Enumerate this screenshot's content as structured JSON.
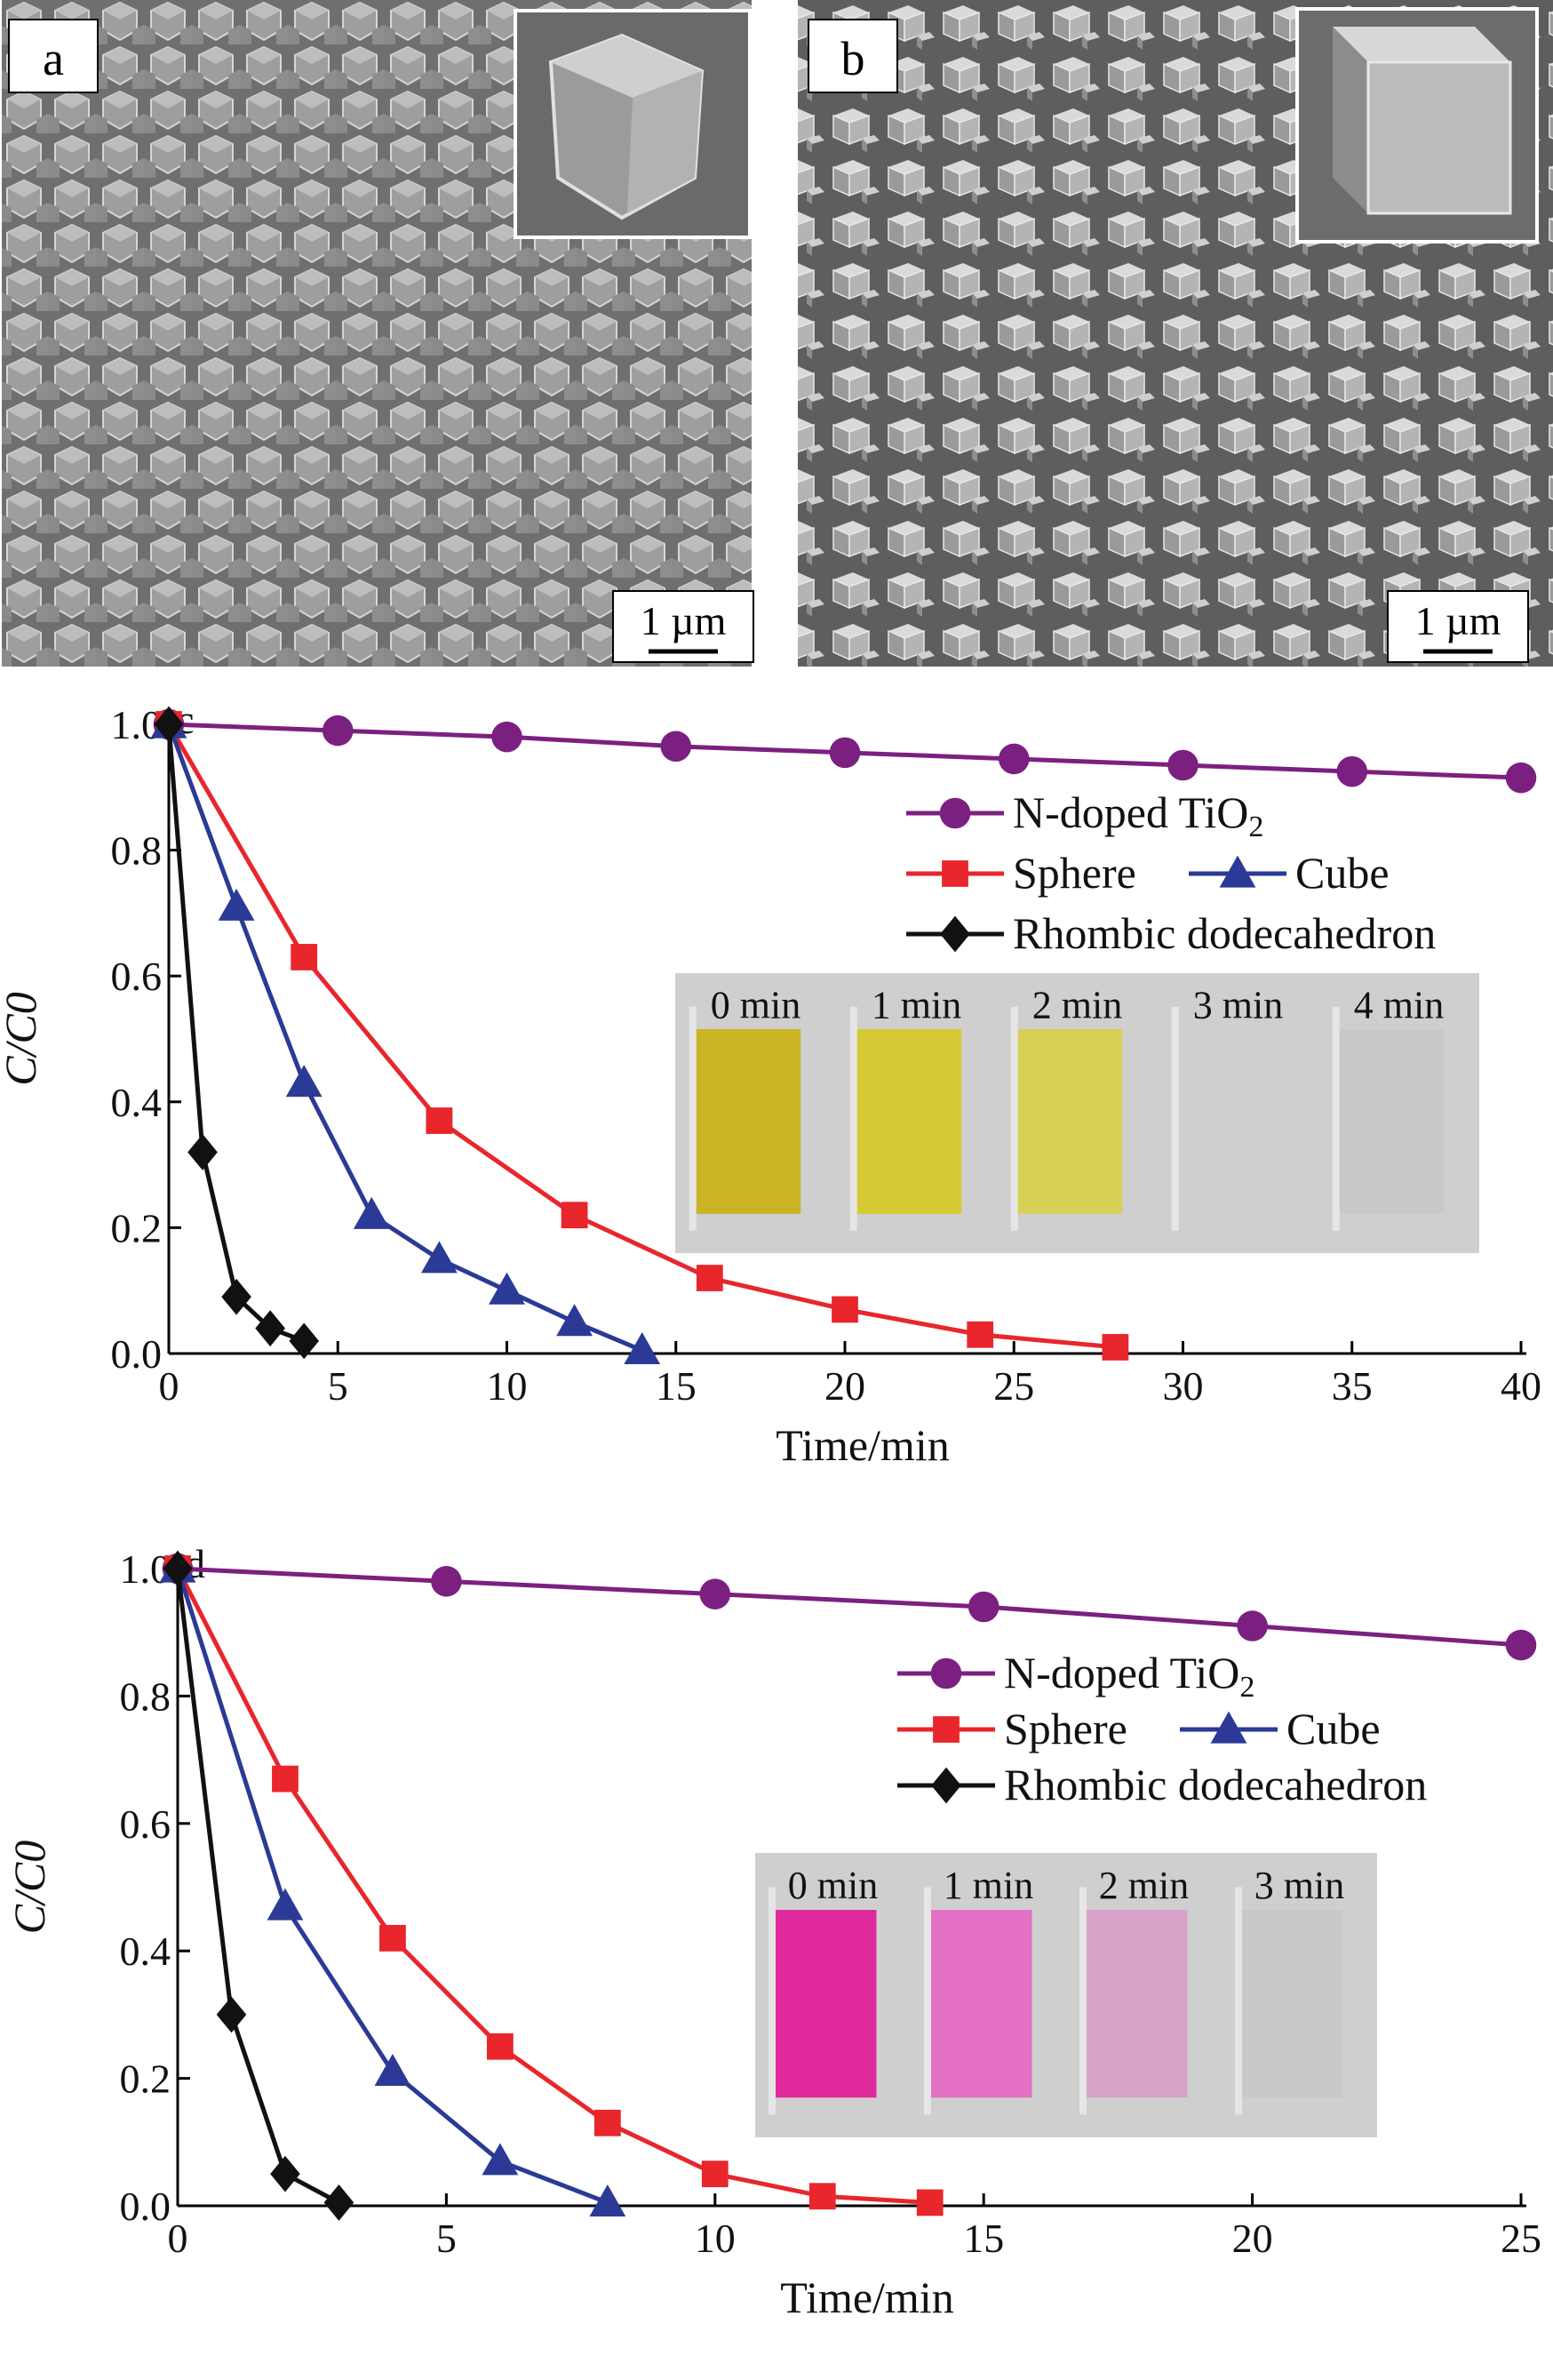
{
  "panels": {
    "a": {
      "label": "a",
      "scale_bar": "1 µm"
    },
    "b": {
      "label": "b",
      "scale_bar": "1 µm"
    }
  },
  "chart_data": [
    {
      "panel_label": "c",
      "type": "line",
      "xlabel": "Time/min",
      "ylabel": "C/C0",
      "xlim": [
        0,
        40
      ],
      "ylim": [
        0,
        1.0
      ],
      "x_ticks": [
        "0",
        "5",
        "10",
        "15",
        "20",
        "25",
        "30",
        "35",
        "40"
      ],
      "y_ticks": [
        "0.0",
        "0.2",
        "0.4",
        "0.6",
        "0.8",
        "1.0"
      ],
      "legend": [
        {
          "name": "N-doped TiO2",
          "marker": "circle",
          "color": "#7b2080"
        },
        {
          "name": "Sphere",
          "marker": "square",
          "color": "#e8262c"
        },
        {
          "name": "Cube",
          "marker": "triangle",
          "color": "#2b3a96"
        },
        {
          "name": "Rhombic dodecahedron",
          "marker": "diamond",
          "color": "#111111"
        }
      ],
      "series": [
        {
          "name": "N-doped TiO2",
          "marker": "circle",
          "color": "#7b2080",
          "x": [
            0,
            5,
            10,
            15,
            20,
            25,
            30,
            35,
            40
          ],
          "y": [
            1.0,
            0.99,
            0.98,
            0.965,
            0.955,
            0.945,
            0.935,
            0.925,
            0.915
          ]
        },
        {
          "name": "Sphere",
          "marker": "square",
          "color": "#e8262c",
          "x": [
            0,
            4,
            8,
            12,
            16,
            20,
            24,
            28
          ],
          "y": [
            1.0,
            0.63,
            0.37,
            0.22,
            0.12,
            0.07,
            0.03,
            0.01
          ]
        },
        {
          "name": "Cube",
          "marker": "triangle",
          "color": "#2b3a96",
          "x": [
            0,
            2,
            4,
            6,
            8,
            10,
            12,
            14
          ],
          "y": [
            1.0,
            0.71,
            0.43,
            0.22,
            0.15,
            0.1,
            0.05,
            0.005
          ]
        },
        {
          "name": "Rhombic dodecahedron",
          "marker": "diamond",
          "color": "#111111",
          "x": [
            0,
            1,
            2,
            3,
            4
          ],
          "y": [
            1.0,
            0.32,
            0.09,
            0.04,
            0.02
          ]
        }
      ],
      "inset_photo": {
        "labels": [
          "0 min",
          "1 min",
          "2 min",
          "3 min",
          "4 min"
        ],
        "colors": [
          "#c8b21a",
          "#d6c82a",
          "#d8d050",
          "#cfcfcf",
          "#c8c8c8"
        ]
      }
    },
    {
      "panel_label": "d",
      "type": "line",
      "xlabel": "Time/min",
      "ylabel": "C/C0",
      "xlim": [
        0,
        25
      ],
      "ylim": [
        0,
        1.0
      ],
      "x_ticks": [
        "0",
        "5",
        "10",
        "15",
        "20",
        "25"
      ],
      "y_ticks": [
        "0.0",
        "0.2",
        "0.4",
        "0.6",
        "0.8",
        "1.0"
      ],
      "legend": [
        {
          "name": "N-doped TiO2",
          "marker": "circle",
          "color": "#7b2080"
        },
        {
          "name": "Sphere",
          "marker": "square",
          "color": "#e8262c"
        },
        {
          "name": "Cube",
          "marker": "triangle",
          "color": "#2b3a96"
        },
        {
          "name": "Rhombic dodecahedron",
          "marker": "diamond",
          "color": "#111111"
        }
      ],
      "series": [
        {
          "name": "N-doped TiO2",
          "marker": "circle",
          "color": "#7b2080",
          "x": [
            0,
            5,
            10,
            15,
            20,
            25
          ],
          "y": [
            1.0,
            0.98,
            0.96,
            0.94,
            0.91,
            0.88
          ]
        },
        {
          "name": "Sphere",
          "marker": "square",
          "color": "#e8262c",
          "x": [
            0,
            2,
            4,
            6,
            8,
            10,
            12,
            14
          ],
          "y": [
            1.0,
            0.67,
            0.42,
            0.25,
            0.13,
            0.05,
            0.015,
            0.005
          ]
        },
        {
          "name": "Cube",
          "marker": "triangle",
          "color": "#2b3a96",
          "x": [
            0,
            2,
            4,
            6,
            8
          ],
          "y": [
            1.0,
            0.47,
            0.21,
            0.07,
            0.005
          ]
        },
        {
          "name": "Rhombic dodecahedron",
          "marker": "diamond",
          "color": "#111111",
          "x": [
            0,
            1,
            2,
            3
          ],
          "y": [
            1.0,
            0.3,
            0.05,
            0.005
          ]
        }
      ],
      "inset_photo": {
        "labels": [
          "0 min",
          "1 min",
          "2 min",
          "3 min"
        ],
        "colors": [
          "#e0209a",
          "#e46ac4",
          "#d8a0c8",
          "#c8c8c8"
        ]
      }
    }
  ]
}
